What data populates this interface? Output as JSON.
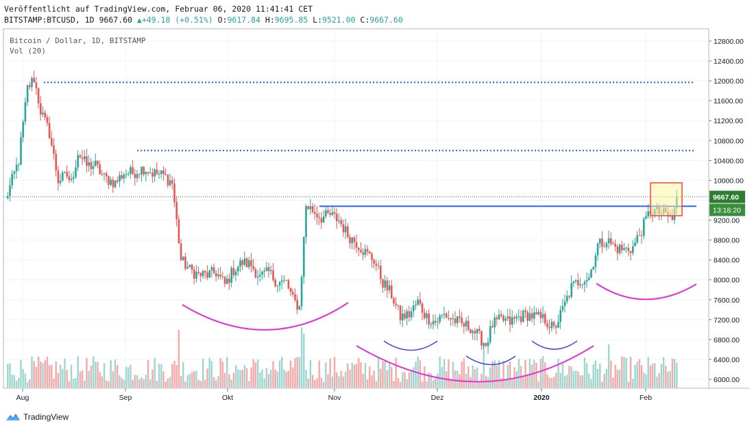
{
  "header": {
    "published": "Veröffentlicht auf TradingView.com, Februar 06, 2020 11:41:41 CET",
    "symbol": "BITSTAMP:BTCUSD, 1D",
    "last": "9667.60",
    "change": "▲+49.18 (+0.51%)",
    "o_label": "O:",
    "o_value": "9617.84",
    "h_label": "H:",
    "h_value": "9695.85",
    "l_label": "L:",
    "l_value": "9521.00",
    "c_label": "C:",
    "c_value": "9667.60"
  },
  "legend": {
    "series": "Bitcoin / Dollar, 1D, BITSTAMP",
    "volume": "Vol (20)"
  },
  "footer": {
    "brand": "TradingView"
  },
  "colors": {
    "up": "#26a69a",
    "down": "#ef5350",
    "vol_up": "#9fd5cf",
    "vol_down": "#f6a9a8",
    "level": "#2962ff",
    "arc_magenta": "#ee2bd8",
    "arc_blue": "#3d46e8",
    "price_badge": "#2e7d32",
    "time_badge": "#388e3c"
  },
  "chart_data": {
    "type": "candlestick",
    "price_axis_ticks": [
      "12800.00",
      "12400.00",
      "12000.00",
      "11600.00",
      "11200.00",
      "10800.00",
      "10400.00",
      "10000.00",
      "9600.00",
      "9200.00",
      "8800.00",
      "8400.00",
      "8000.00",
      "7600.00",
      "7200.00",
      "6800.00",
      "6400.00",
      "6000.00"
    ],
    "time_axis_ticks": [
      "Aug",
      "Sep",
      "Okt",
      "Nov",
      "Dez",
      "2020",
      "Feb"
    ],
    "last_price_label": "9667.60",
    "countdown_label": "13:18:20",
    "horizontal_levels": [
      {
        "price": 11970,
        "style": "dotted"
      },
      {
        "price": 10600,
        "style": "dotted"
      },
      {
        "price": 9480,
        "style": "solid"
      }
    ],
    "anchor_prices": [
      [
        0,
        9600
      ],
      [
        6,
        10400
      ],
      [
        10,
        11850
      ],
      [
        13,
        12050
      ],
      [
        16,
        11400
      ],
      [
        20,
        10950
      ],
      [
        24,
        10000
      ],
      [
        28,
        10100
      ],
      [
        30,
        9950
      ],
      [
        33,
        10550
      ],
      [
        37,
        10300
      ],
      [
        41,
        10300
      ],
      [
        45,
        10050
      ],
      [
        50,
        9950
      ],
      [
        54,
        10150
      ],
      [
        58,
        10150
      ],
      [
        63,
        10250
      ],
      [
        67,
        10150
      ],
      [
        72,
        10100
      ],
      [
        76,
        9950
      ],
      [
        80,
        8400
      ],
      [
        84,
        8200
      ],
      [
        88,
        8100
      ],
      [
        92,
        8100
      ],
      [
        96,
        8150
      ],
      [
        100,
        7900
      ],
      [
        104,
        8200
      ],
      [
        108,
        8350
      ],
      [
        112,
        8300
      ],
      [
        116,
        8050
      ],
      [
        120,
        8150
      ],
      [
        124,
        7950
      ],
      [
        128,
        7950
      ],
      [
        131,
        7600
      ],
      [
        134,
        7450
      ],
      [
        137,
        9500
      ],
      [
        140,
        9400
      ],
      [
        144,
        9250
      ],
      [
        148,
        9300
      ],
      [
        152,
        9200
      ],
      [
        156,
        8900
      ],
      [
        160,
        8750
      ],
      [
        164,
        8550
      ],
      [
        168,
        8400
      ],
      [
        172,
        7950
      ],
      [
        176,
        7700
      ],
      [
        180,
        7250
      ],
      [
        184,
        7300
      ],
      [
        188,
        7550
      ],
      [
        192,
        7250
      ],
      [
        196,
        7150
      ],
      [
        200,
        7300
      ],
      [
        204,
        7200
      ],
      [
        208,
        7100
      ],
      [
        212,
        7050
      ],
      [
        216,
        6850
      ],
      [
        219,
        6700
      ],
      [
        222,
        7100
      ],
      [
        226,
        7200
      ],
      [
        230,
        7150
      ],
      [
        234,
        7250
      ],
      [
        238,
        7300
      ],
      [
        242,
        7250
      ],
      [
        246,
        7200
      ],
      [
        250,
        7000
      ],
      [
        254,
        7400
      ],
      [
        258,
        7850
      ],
      [
        262,
        8000
      ],
      [
        266,
        8050
      ],
      [
        270,
        8700
      ],
      [
        274,
        8800
      ],
      [
        278,
        8650
      ],
      [
        282,
        8600
      ],
      [
        286,
        8650
      ],
      [
        290,
        9000
      ],
      [
        294,
        9400
      ],
      [
        298,
        9350
      ],
      [
        302,
        9300
      ],
      [
        304,
        9200
      ],
      [
        306,
        9670
      ]
    ],
    "annotations": [
      "cup arc (magenta) under Okt",
      "cup arc (magenta) under Dez",
      "small arcs (blue) under Dez",
      "cup arc (magenta) under Feb",
      "highlight box (yellow/red) at latest candles"
    ]
  }
}
